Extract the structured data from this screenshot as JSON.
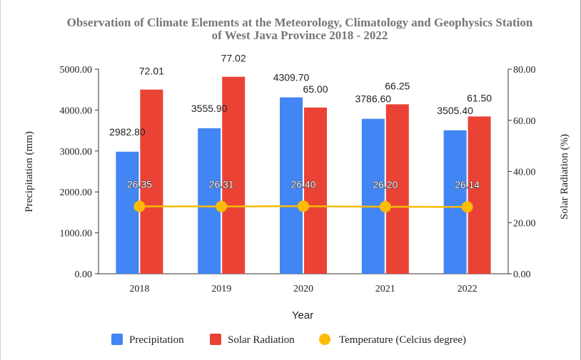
{
  "chart_data": {
    "type": "bar",
    "title": "Observation of Climate Elements at the Meteorology, Climatology and Geophysics Station of West Java Province 2018 - 2022",
    "title_lines": [
      "Observation of Climate Elements at the Meteorology, Climatology and Geophysics Station",
      "of West Java Province 2018 - 2022"
    ],
    "xlabel": "Year",
    "ylabel_left": "Precipitation (mm)",
    "ylabel_right": "Solar Radiation (%)",
    "categories": [
      "2018",
      "2019",
      "2020",
      "2021",
      "2022"
    ],
    "y_left": {
      "min": 0,
      "max": 5000,
      "ticks": [
        "0.00",
        "1000.00",
        "2000.00",
        "3000.00",
        "4000.00",
        "5000.00"
      ]
    },
    "y_right": {
      "min": 0,
      "max": 80,
      "ticks": [
        "0.00",
        "20.00",
        "40.00",
        "60.00",
        "80.00"
      ]
    },
    "grid": false,
    "legend_position": "bottom",
    "series": [
      {
        "name": "Precipitation",
        "type": "bar",
        "axis": "left",
        "color": "#4285f4",
        "values": [
          2982.8,
          3555.9,
          4309.7,
          3786.6,
          3505.4
        ],
        "labels": [
          "2982.80",
          "3555.90",
          "4309.70",
          "3786.60",
          "3505.40"
        ]
      },
      {
        "name": "Solar Radiation",
        "type": "bar",
        "axis": "right",
        "color": "#ea4335",
        "values": [
          72.01,
          77.02,
          65.0,
          66.25,
          61.5
        ],
        "labels": [
          "72.01",
          "77.02",
          "65.00",
          "66.25",
          "61.50"
        ]
      },
      {
        "name": "Temperature (Celcius degree)",
        "type": "line",
        "axis": "right",
        "color": "#fbbc04",
        "values": [
          26.35,
          26.31,
          26.4,
          26.2,
          26.14
        ],
        "labels": [
          "26.35",
          "26.31",
          "26.40",
          "26.20",
          "26.14"
        ]
      }
    ]
  }
}
